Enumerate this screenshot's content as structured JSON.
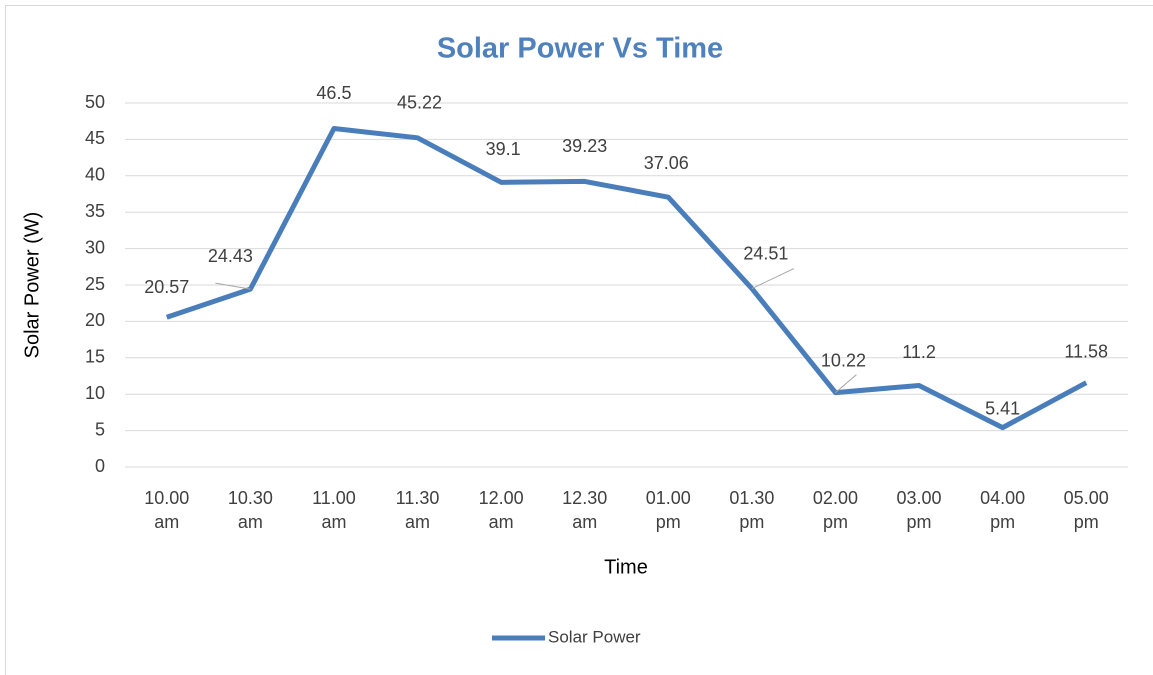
{
  "chart_data": {
    "type": "line",
    "title": "Solar Power Vs Time",
    "x_label": "Time",
    "y_label": "Solar Power (W)",
    "categories": [
      "10.00 am",
      "10.30 am",
      "11.00 am",
      "11.30 am",
      "12.00 am",
      "12.30 am",
      "01.00 pm",
      "01.30 pm",
      "02.00 pm",
      "03.00 pm",
      "04.00 pm",
      "05.00 pm"
    ],
    "series": [
      {
        "name": "Solar Power",
        "color": "#4a7ebb",
        "values": [
          20.57,
          24.43,
          46.5,
          45.22,
          39.1,
          39.23,
          37.06,
          24.51,
          10.22,
          11.2,
          5.41,
          11.58
        ]
      }
    ],
    "ylim": [
      0,
      50
    ],
    "yticks": [
      0,
      5,
      10,
      15,
      20,
      25,
      30,
      35,
      40,
      45,
      50
    ],
    "grid": true,
    "legend": "bottom"
  }
}
